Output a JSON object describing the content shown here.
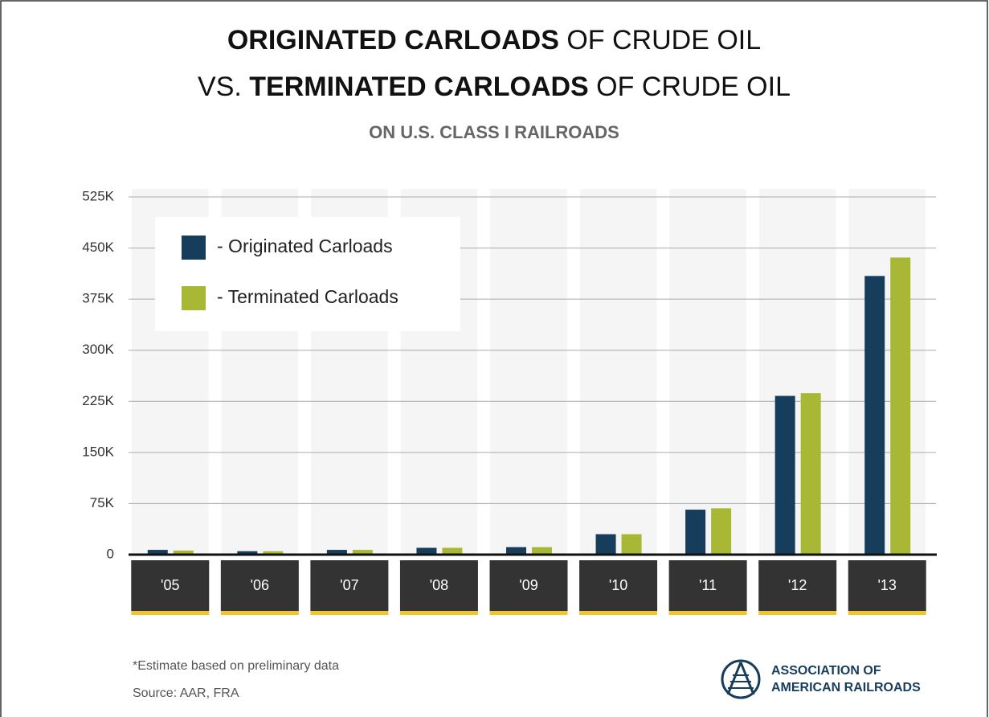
{
  "chart_data": {
    "type": "bar",
    "title_lines": [
      [
        {
          "text": "ORIGINATED CARLOADS",
          "bold": true
        },
        {
          "text": " OF CRUDE OIL",
          "bold": false
        }
      ],
      [
        {
          "text": "VS. ",
          "bold": false
        },
        {
          "text": "TERMINATED CARLOADS",
          "bold": true
        },
        {
          "text": " OF CRUDE OIL",
          "bold": false
        }
      ]
    ],
    "subtitle": "ON U.S. CLASS I RAILROADS",
    "categories": [
      "'05",
      "'06",
      "'07",
      "'08",
      "'09",
      "'10",
      "'11",
      "'12",
      "'13"
    ],
    "series": [
      {
        "name": "- Originated Carloads",
        "color": "#173d5c",
        "values": [
          7000,
          5000,
          7000,
          10000,
          11000,
          30000,
          66000,
          233000,
          409000
        ]
      },
      {
        "name": "- Terminated Carloads",
        "color": "#a9b834",
        "values": [
          6000,
          5000,
          7000,
          10000,
          11000,
          30000,
          68000,
          237000,
          436000
        ]
      }
    ],
    "ylim": [
      0,
      525000
    ],
    "yticks": [
      0,
      {
        "value": 75000,
        "label": "75K"
      },
      {
        "value": 150000,
        "label": "150K"
      },
      {
        "value": 225000,
        "label": "225K"
      },
      {
        "value": 300000,
        "label": "300K"
      },
      {
        "value": 375000,
        "label": "375K"
      },
      {
        "value": 450000,
        "label": "450K"
      },
      {
        "value": 525000,
        "label": "525K"
      }
    ],
    "grid": true,
    "legend": "top-left",
    "footnote": "*Estimate based on preliminary data",
    "source": "Source: AAR, FRA",
    "logo_lines": [
      "ASSOCIATION OF",
      "AMERICAN RAILROADS"
    ]
  }
}
